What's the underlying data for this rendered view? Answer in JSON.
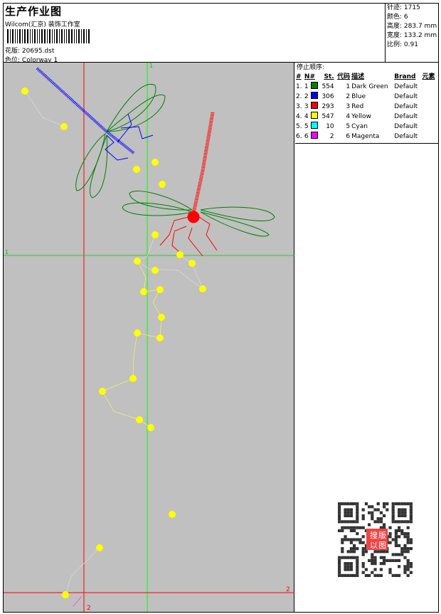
{
  "header": {
    "title": "生产作业图",
    "company": "Wilcom(汇京) 装饰工作室",
    "design_label": "花版:",
    "design_value": "20695.dst",
    "colorway_label": "色位:",
    "colorway_value": "Colorway 1"
  },
  "info": [
    {
      "label": "针迹:",
      "value": "1715"
    },
    {
      "label": "颜色:",
      "value": "6"
    },
    {
      "label": "高度:",
      "value": "283.7 mm"
    },
    {
      "label": "宽度:",
      "value": "133.2 mm"
    },
    {
      "label": "比例:",
      "value": "0.91"
    }
  ],
  "stop_sequence": {
    "title": "停止顺序:",
    "columns": [
      "#",
      "N#",
      "St.",
      "代码",
      "描述",
      "Brand",
      "元素"
    ],
    "rows": [
      {
        "idx": "1.",
        "n": "1",
        "color": "#008000",
        "st": "554",
        "code": "1",
        "desc": "Dark Green",
        "brand": "Default"
      },
      {
        "idx": "2.",
        "n": "2",
        "color": "#0000ff",
        "st": "306",
        "code": "2",
        "desc": "Blue",
        "brand": "Default"
      },
      {
        "idx": "3.",
        "n": "3",
        "color": "#ff0000",
        "st": "293",
        "code": "3",
        "desc": "Red",
        "brand": "Default"
      },
      {
        "idx": "4.",
        "n": "4",
        "color": "#ffff00",
        "st": "547",
        "code": "4",
        "desc": "Yellow",
        "brand": "Default"
      },
      {
        "idx": "5.",
        "n": "5",
        "color": "#00ffff",
        "st": "10",
        "code": "5",
        "desc": "Cyan",
        "brand": "Default"
      },
      {
        "idx": "6.",
        "n": "6",
        "color": "#ff00ff",
        "st": "2",
        "code": "6",
        "desc": "Magenta",
        "brand": "Default"
      }
    ]
  },
  "canvas": {
    "background": "#c0c0c0",
    "marker1": "1",
    "marker2": "2",
    "guide1_color": "#00ff00",
    "guide2_color": "#ff0000"
  },
  "qr": {
    "stamp_text": "以图搜版"
  }
}
